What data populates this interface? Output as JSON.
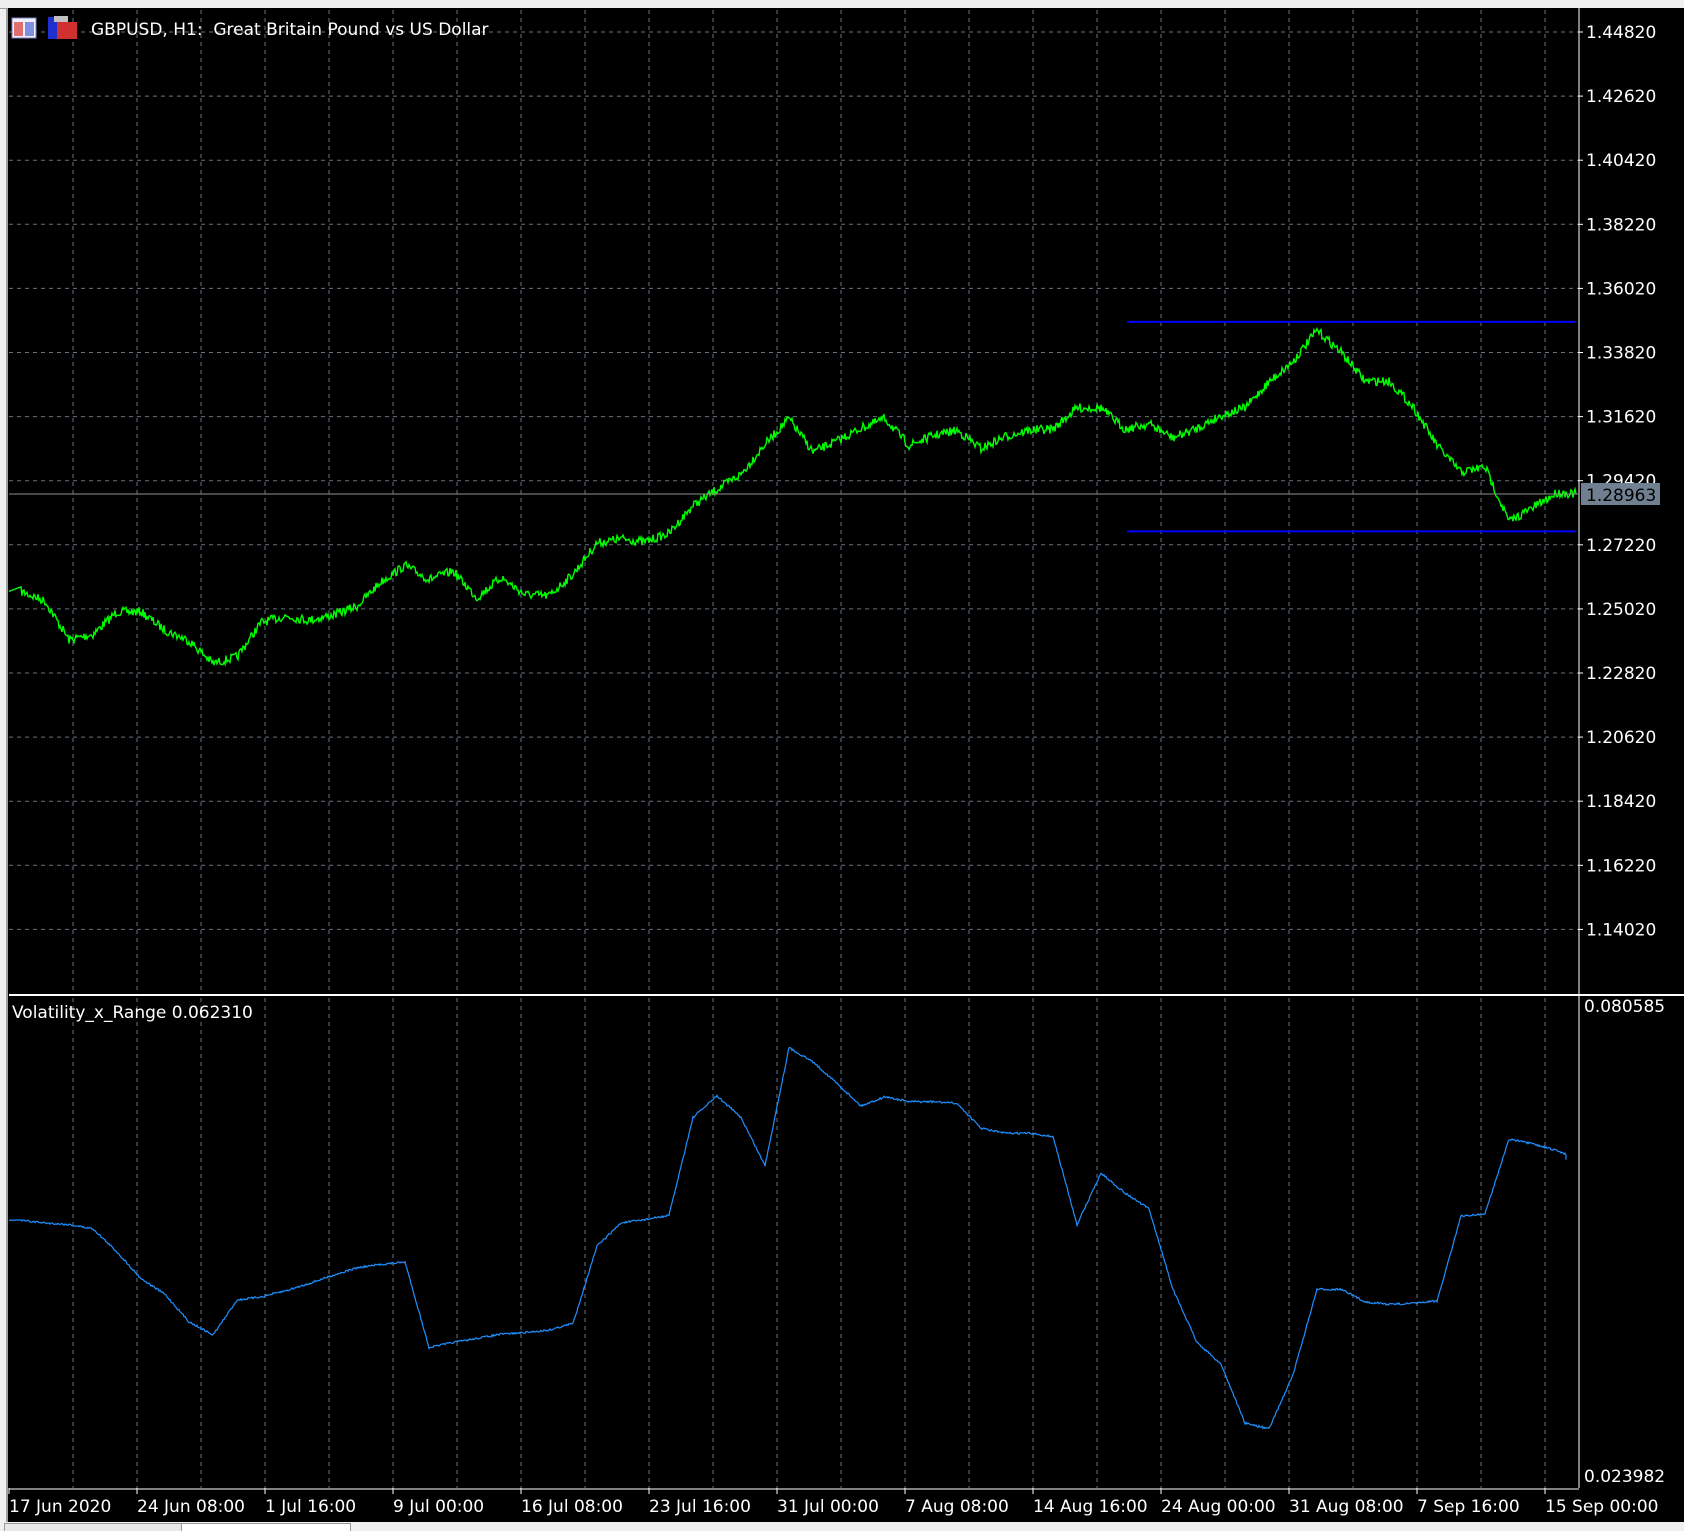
{
  "window": {
    "title": "GBPUSD, H1:  Great Britain Pound vs US Dollar",
    "icons": [
      "chart-window-icon",
      "expert-advisor-icon"
    ]
  },
  "colors": {
    "background": "#000000",
    "price_line": "#00ff00",
    "levels": "#0000ff",
    "indicator_line": "#1e90ff",
    "grid": "#8090a0",
    "axis_text": "#ffffff",
    "price_tag": "#708090"
  },
  "chart_data": [
    {
      "type": "line",
      "title": "GBPUSD, H1:  Great Britain Pound vs US Dollar",
      "symbol": "GBPUSD",
      "timeframe": "H1",
      "grid": true,
      "ylim": [
        1.1292,
        1.4592
      ],
      "y_ticks": [
        "1.44820",
        "1.42620",
        "1.40420",
        "1.38220",
        "1.36020",
        "1.33820",
        "1.31620",
        "1.29420",
        "1.27220",
        "1.25020",
        "1.22820",
        "1.20620",
        "1.18420",
        "1.16220",
        "1.14020"
      ],
      "x_ticks": [
        "17 Jun 2020",
        "24 Jun 08:00",
        "1 Jul 16:00",
        "9 Jul 00:00",
        "16 Jul 08:00",
        "23 Jul 16:00",
        "31 Jul 00:00",
        "7 Aug 08:00",
        "14 Aug 16:00",
        "24 Aug 00:00",
        "31 Aug 08:00",
        "7 Sep 16:00",
        "15 Sep 00:00"
      ],
      "current_price": "1.28963",
      "horizontal_levels": [
        {
          "value": 1.3487,
          "from": "2020-08-20"
        },
        {
          "value": 1.2768,
          "from": "2020-08-20"
        }
      ],
      "x": [
        "2020-06-17",
        "2020-06-18",
        "2020-06-19",
        "2020-06-22",
        "2020-06-23",
        "2020-06-24",
        "2020-06-25",
        "2020-06-26",
        "2020-06-29",
        "2020-06-30",
        "2020-07-01",
        "2020-07-02",
        "2020-07-03",
        "2020-07-06",
        "2020-07-07",
        "2020-07-08",
        "2020-07-09",
        "2020-07-10",
        "2020-07-13",
        "2020-07-14",
        "2020-07-15",
        "2020-07-16",
        "2020-07-17",
        "2020-07-20",
        "2020-07-21",
        "2020-07-22",
        "2020-07-23",
        "2020-07-24",
        "2020-07-27",
        "2020-07-28",
        "2020-07-29",
        "2020-07-30",
        "2020-07-31",
        "2020-08-03",
        "2020-08-04",
        "2020-08-05",
        "2020-08-06",
        "2020-08-07",
        "2020-08-10",
        "2020-08-11",
        "2020-08-12",
        "2020-08-13",
        "2020-08-14",
        "2020-08-17",
        "2020-08-18",
        "2020-08-19",
        "2020-08-20",
        "2020-08-21",
        "2020-08-24",
        "2020-08-25",
        "2020-08-26",
        "2020-08-27",
        "2020-08-28",
        "2020-08-31",
        "2020-09-01",
        "2020-09-02",
        "2020-09-03",
        "2020-09-04",
        "2020-09-07",
        "2020-09-08",
        "2020-09-09",
        "2020-09-10",
        "2020-09-11",
        "2020-09-14",
        "2020-09-15",
        "2020-09-16"
      ],
      "values": [
        1.2562,
        1.2529,
        1.2396,
        1.2415,
        1.2492,
        1.2492,
        1.2429,
        1.2393,
        1.2315,
        1.2337,
        1.2455,
        1.2477,
        1.2463,
        1.2481,
        1.2511,
        1.2595,
        1.2651,
        1.2603,
        1.2632,
        1.254,
        1.261,
        1.2551,
        1.2547,
        1.2621,
        1.2728,
        1.2743,
        1.2732,
        1.2761,
        1.2857,
        1.2912,
        1.2964,
        1.3067,
        1.3155,
        1.3041,
        1.3078,
        1.3122,
        1.3155,
        1.3063,
        1.3096,
        1.3115,
        1.3052,
        1.3093,
        1.3115,
        1.3119,
        1.3192,
        1.3192,
        1.3119,
        1.3137,
        1.3089,
        1.3122,
        1.3166,
        1.3192,
        1.3281,
        1.3351,
        1.3458,
        1.3384,
        1.3284,
        1.3284,
        1.3196,
        1.3063,
        1.2971,
        1.299,
        1.2802,
        1.285,
        1.2901,
        1.2896
      ]
    },
    {
      "type": "line",
      "title": "Volatility_x_Range 0.062310",
      "grid": true,
      "ylim": [
        0.023982,
        0.080585
      ],
      "y_ticks": [
        "0.080585",
        "0.023982"
      ],
      "values": [
        0.055,
        0.0547,
        0.0545,
        0.054,
        0.0512,
        0.048,
        0.0461,
        0.0428,
        0.0412,
        0.0454,
        0.0458,
        0.0465,
        0.0474,
        0.0484,
        0.0493,
        0.0497,
        0.05,
        0.0397,
        0.0403,
        0.0408,
        0.0413,
        0.0415,
        0.0418,
        0.0426,
        0.0519,
        0.0547,
        0.0551,
        0.0556,
        0.0674,
        0.07,
        0.0674,
        0.0616,
        0.0758,
        0.0741,
        0.0715,
        0.0688,
        0.0699,
        0.0693,
        0.0693,
        0.0691,
        0.0661,
        0.0655,
        0.0655,
        0.0651,
        0.0545,
        0.0607,
        0.0583,
        0.0564,
        0.0467,
        0.0403,
        0.0377,
        0.0306,
        0.0299,
        0.0364,
        0.0467,
        0.0467,
        0.0452,
        0.0449,
        0.045,
        0.0453,
        0.0555,
        0.0558,
        0.0648,
        0.0642,
        0.0634,
        0.0623
      ]
    }
  ]
}
